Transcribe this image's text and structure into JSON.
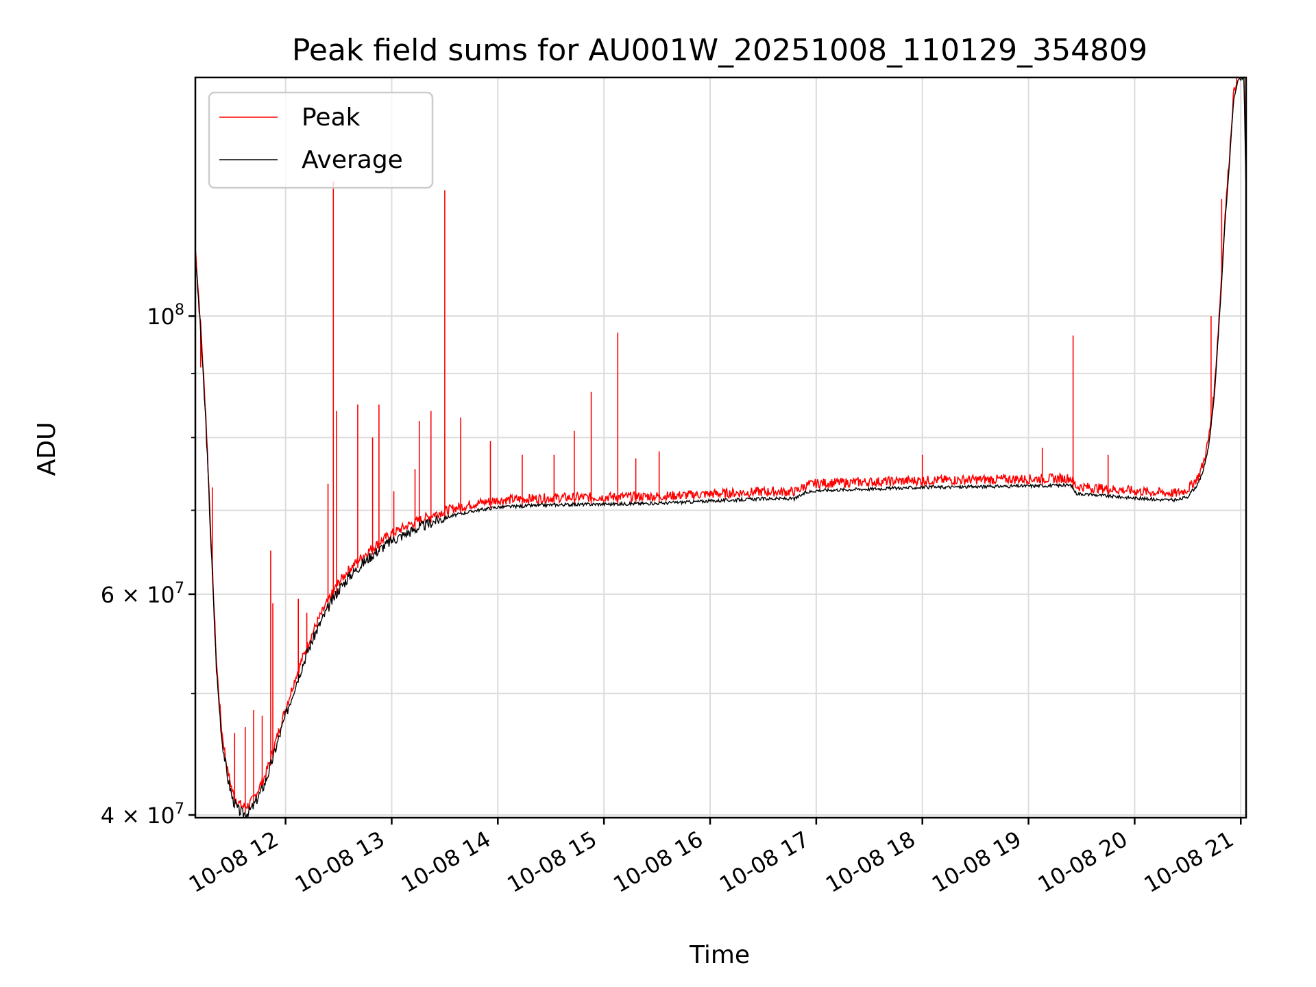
{
  "chart_data": {
    "type": "line",
    "title": "Peak field sums for AU001W_20251008_110129_354809",
    "xlabel": "Time",
    "ylabel": "ADU",
    "y_scale": "log",
    "ylim": [
      39800000,
      155000000
    ],
    "xlim_hours": [
      11.15,
      21.05
    ],
    "grid": true,
    "legend_position": "upper left",
    "x_ticks": [
      {
        "value": 12,
        "label": "10-08 12"
      },
      {
        "value": 13,
        "label": "10-08 13"
      },
      {
        "value": 14,
        "label": "10-08 14"
      },
      {
        "value": 15,
        "label": "10-08 15"
      },
      {
        "value": 16,
        "label": "10-08 16"
      },
      {
        "value": 17,
        "label": "10-08 17"
      },
      {
        "value": 18,
        "label": "10-08 18"
      },
      {
        "value": 19,
        "label": "10-08 19"
      },
      {
        "value": 20,
        "label": "10-08 20"
      },
      {
        "value": 21,
        "label": "10-08 21"
      }
    ],
    "y_ticks_major": [
      {
        "value": 40000000,
        "base": "4 × 10",
        "exp": "7"
      },
      {
        "value": 60000000,
        "base": "6 × 10",
        "exp": "7"
      },
      {
        "value": 100000000,
        "base": "10",
        "exp": "8"
      }
    ],
    "y_ticks_minor": [
      50000000,
      70000000,
      80000000,
      90000000
    ],
    "series": [
      {
        "name": "Peak",
        "color": "#ff0000",
        "role": "peak",
        "spikes": [
          {
            "x": 11.2,
            "y": 91000000
          },
          {
            "x": 11.31,
            "y": 73000000
          },
          {
            "x": 11.4,
            "y": 46500000
          },
          {
            "x": 11.52,
            "y": 46500000
          },
          {
            "x": 11.62,
            "y": 47000000
          },
          {
            "x": 11.7,
            "y": 48500000
          },
          {
            "x": 11.78,
            "y": 48000000
          },
          {
            "x": 11.86,
            "y": 65000000
          },
          {
            "x": 11.88,
            "y": 59000000
          },
          {
            "x": 12.12,
            "y": 59500000
          },
          {
            "x": 12.2,
            "y": 58000000
          },
          {
            "x": 12.4,
            "y": 73500000
          },
          {
            "x": 12.45,
            "y": 128000000
          },
          {
            "x": 12.48,
            "y": 84000000
          },
          {
            "x": 12.68,
            "y": 85000000
          },
          {
            "x": 12.82,
            "y": 80000000
          },
          {
            "x": 12.88,
            "y": 85000000
          },
          {
            "x": 13.02,
            "y": 72500000
          },
          {
            "x": 13.22,
            "y": 75500000
          },
          {
            "x": 13.26,
            "y": 82500000
          },
          {
            "x": 13.37,
            "y": 84000000
          },
          {
            "x": 13.5,
            "y": 126000000
          },
          {
            "x": 13.65,
            "y": 83000000
          },
          {
            "x": 13.93,
            "y": 79500000
          },
          {
            "x": 14.23,
            "y": 77500000
          },
          {
            "x": 14.53,
            "y": 77500000
          },
          {
            "x": 14.72,
            "y": 81000000
          },
          {
            "x": 14.88,
            "y": 87000000
          },
          {
            "x": 15.13,
            "y": 97000000
          },
          {
            "x": 15.3,
            "y": 77000000
          },
          {
            "x": 15.52,
            "y": 78000000
          },
          {
            "x": 18.0,
            "y": 77500000
          },
          {
            "x": 19.13,
            "y": 78500000
          },
          {
            "x": 19.42,
            "y": 96500000
          },
          {
            "x": 19.75,
            "y": 77500000
          },
          {
            "x": 20.72,
            "y": 100000000
          },
          {
            "x": 20.82,
            "y": 124000000
          }
        ]
      },
      {
        "name": "Average",
        "color": "#000000",
        "role": "average",
        "points": [
          [
            11.15,
            112000000
          ],
          [
            11.2,
            97000000
          ],
          [
            11.25,
            82000000
          ],
          [
            11.3,
            65000000
          ],
          [
            11.35,
            52000000
          ],
          [
            11.4,
            46000000
          ],
          [
            11.45,
            43000000
          ],
          [
            11.5,
            41200000
          ],
          [
            11.55,
            40400000
          ],
          [
            11.6,
            40100000
          ],
          [
            11.65,
            40200000
          ],
          [
            11.7,
            40700000
          ],
          [
            11.75,
            41500000
          ],
          [
            11.8,
            42300000
          ],
          [
            11.85,
            43500000
          ],
          [
            11.9,
            45000000
          ],
          [
            12.0,
            48000000
          ],
          [
            12.1,
            51000000
          ],
          [
            12.2,
            53800000
          ],
          [
            12.3,
            56300000
          ],
          [
            12.4,
            58500000
          ],
          [
            12.5,
            60500000
          ],
          [
            12.6,
            62000000
          ],
          [
            12.7,
            63200000
          ],
          [
            12.8,
            64300000
          ],
          [
            12.9,
            65300000
          ],
          [
            13.0,
            66200000
          ],
          [
            13.2,
            67500000
          ],
          [
            13.4,
            68600000
          ],
          [
            13.6,
            69400000
          ],
          [
            13.8,
            70000000
          ],
          [
            14.0,
            70400000
          ],
          [
            14.5,
            70700000
          ],
          [
            15.0,
            70800000
          ],
          [
            15.5,
            70900000
          ],
          [
            16.0,
            71200000
          ],
          [
            16.5,
            71500000
          ],
          [
            16.8,
            71500000
          ],
          [
            16.9,
            72300000
          ],
          [
            17.0,
            72600000
          ],
          [
            17.5,
            72800000
          ],
          [
            18.0,
            73000000
          ],
          [
            18.5,
            73100000
          ],
          [
            19.0,
            73200000
          ],
          [
            19.4,
            73300000
          ],
          [
            19.45,
            72200000
          ],
          [
            19.8,
            71800000
          ],
          [
            20.2,
            71400000
          ],
          [
            20.4,
            71300000
          ],
          [
            20.5,
            71800000
          ],
          [
            20.6,
            73500000
          ],
          [
            20.65,
            75500000
          ],
          [
            20.7,
            79000000
          ],
          [
            20.75,
            86000000
          ],
          [
            20.8,
            100000000
          ],
          [
            20.85,
            118000000
          ],
          [
            20.9,
            135000000
          ],
          [
            20.93,
            148000000
          ],
          [
            20.97,
            154000000
          ],
          [
            21.03,
            155000000
          ],
          [
            21.05,
            125000000
          ]
        ]
      }
    ]
  }
}
